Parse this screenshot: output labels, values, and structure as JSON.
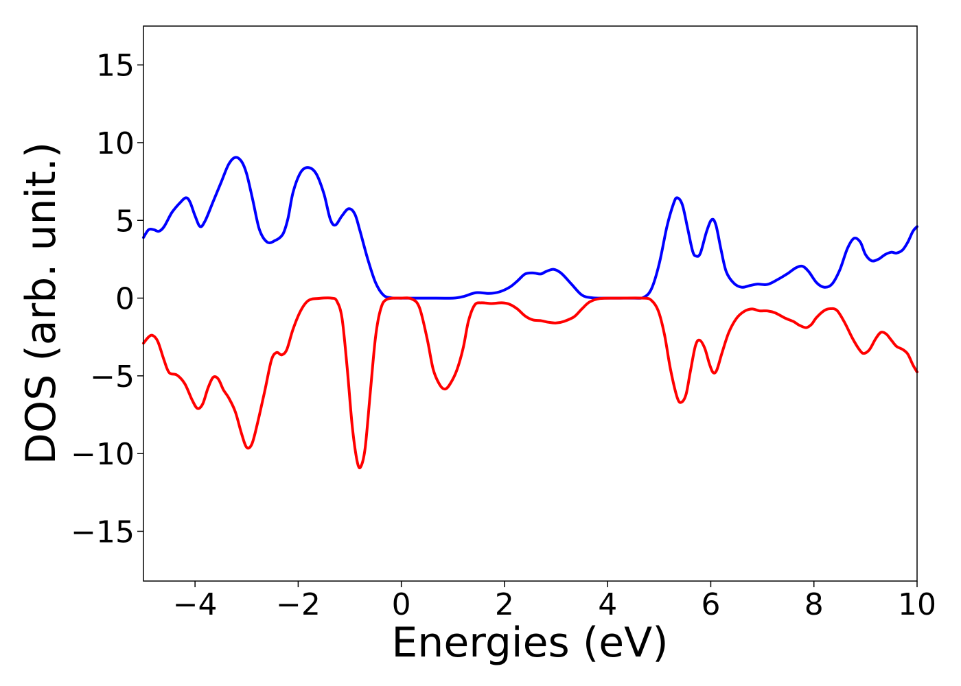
{
  "chart_data": {
    "type": "line",
    "title": "",
    "xlabel": "Energies (eV)",
    "ylabel": "DOS (arb. unit.)",
    "xlim": [
      -5,
      10
    ],
    "ylim": [
      -18.2,
      17.5
    ],
    "xticks": [
      -4,
      -2,
      0,
      2,
      4,
      6,
      8,
      10
    ],
    "xtick_labels": [
      "−4",
      "−2",
      "0",
      "2",
      "4",
      "6",
      "8",
      "10"
    ],
    "yticks": [
      15,
      10,
      5,
      0,
      -5,
      -10,
      -15
    ],
    "ytick_labels": [
      "15",
      "10",
      "5",
      "0",
      "−5",
      "−10",
      "−15"
    ],
    "grid": false,
    "legend": "none",
    "series": [
      {
        "color": "#0000ff",
        "points": [
          [
            -5.0,
            3.9
          ],
          [
            -4.9,
            4.4
          ],
          [
            -4.8,
            4.4
          ],
          [
            -4.7,
            4.3
          ],
          [
            -4.6,
            4.6
          ],
          [
            -4.45,
            5.5
          ],
          [
            -4.3,
            6.1
          ],
          [
            -4.18,
            6.45
          ],
          [
            -4.1,
            6.2
          ],
          [
            -4.0,
            5.3
          ],
          [
            -3.9,
            4.6
          ],
          [
            -3.8,
            5.0
          ],
          [
            -3.65,
            6.2
          ],
          [
            -3.5,
            7.4
          ],
          [
            -3.35,
            8.6
          ],
          [
            -3.22,
            9.05
          ],
          [
            -3.1,
            8.8
          ],
          [
            -3.0,
            8.0
          ],
          [
            -2.88,
            6.3
          ],
          [
            -2.75,
            4.4
          ],
          [
            -2.6,
            3.6
          ],
          [
            -2.45,
            3.7
          ],
          [
            -2.3,
            4.1
          ],
          [
            -2.2,
            5.1
          ],
          [
            -2.1,
            6.8
          ],
          [
            -1.95,
            8.1
          ],
          [
            -1.8,
            8.4
          ],
          [
            -1.65,
            8.0
          ],
          [
            -1.5,
            6.7
          ],
          [
            -1.38,
            5.1
          ],
          [
            -1.28,
            4.7
          ],
          [
            -1.15,
            5.3
          ],
          [
            -1.02,
            5.75
          ],
          [
            -0.9,
            5.4
          ],
          [
            -0.8,
            4.3
          ],
          [
            -0.65,
            2.5
          ],
          [
            -0.5,
            1.0
          ],
          [
            -0.35,
            0.2
          ],
          [
            -0.2,
            0.02
          ],
          [
            0.0,
            0.0
          ],
          [
            0.5,
            0.0
          ],
          [
            1.0,
            0.0
          ],
          [
            1.2,
            0.1
          ],
          [
            1.45,
            0.35
          ],
          [
            1.7,
            0.3
          ],
          [
            1.9,
            0.4
          ],
          [
            2.1,
            0.7
          ],
          [
            2.25,
            1.1
          ],
          [
            2.4,
            1.55
          ],
          [
            2.55,
            1.62
          ],
          [
            2.7,
            1.55
          ],
          [
            2.8,
            1.7
          ],
          [
            2.95,
            1.85
          ],
          [
            3.1,
            1.6
          ],
          [
            3.3,
            0.9
          ],
          [
            3.5,
            0.2
          ],
          [
            3.7,
            0.02
          ],
          [
            4.0,
            0.0
          ],
          [
            4.5,
            0.0
          ],
          [
            4.7,
            0.05
          ],
          [
            4.85,
            0.6
          ],
          [
            5.0,
            2.2
          ],
          [
            5.15,
            4.6
          ],
          [
            5.28,
            6.1
          ],
          [
            5.35,
            6.45
          ],
          [
            5.45,
            6.0
          ],
          [
            5.55,
            4.5
          ],
          [
            5.65,
            3.0
          ],
          [
            5.72,
            2.7
          ],
          [
            5.8,
            2.9
          ],
          [
            5.92,
            4.3
          ],
          [
            6.02,
            5.05
          ],
          [
            6.1,
            4.7
          ],
          [
            6.2,
            3.1
          ],
          [
            6.3,
            1.7
          ],
          [
            6.45,
            0.95
          ],
          [
            6.6,
            0.7
          ],
          [
            6.75,
            0.8
          ],
          [
            6.9,
            0.9
          ],
          [
            7.1,
            0.88
          ],
          [
            7.3,
            1.2
          ],
          [
            7.5,
            1.6
          ],
          [
            7.65,
            1.95
          ],
          [
            7.78,
            2.05
          ],
          [
            7.9,
            1.7
          ],
          [
            8.05,
            1.0
          ],
          [
            8.2,
            0.7
          ],
          [
            8.35,
            0.9
          ],
          [
            8.5,
            1.8
          ],
          [
            8.65,
            3.2
          ],
          [
            8.78,
            3.85
          ],
          [
            8.9,
            3.6
          ],
          [
            9.0,
            2.8
          ],
          [
            9.12,
            2.4
          ],
          [
            9.25,
            2.5
          ],
          [
            9.38,
            2.8
          ],
          [
            9.5,
            2.95
          ],
          [
            9.6,
            2.9
          ],
          [
            9.72,
            3.1
          ],
          [
            9.82,
            3.6
          ],
          [
            9.92,
            4.3
          ],
          [
            10.0,
            4.6
          ]
        ]
      },
      {
        "color": "#ff0000",
        "points": [
          [
            -5.0,
            -2.9
          ],
          [
            -4.9,
            -2.5
          ],
          [
            -4.82,
            -2.4
          ],
          [
            -4.72,
            -2.8
          ],
          [
            -4.6,
            -4.0
          ],
          [
            -4.5,
            -4.8
          ],
          [
            -4.35,
            -4.95
          ],
          [
            -4.2,
            -5.5
          ],
          [
            -4.05,
            -6.6
          ],
          [
            -3.95,
            -7.1
          ],
          [
            -3.85,
            -6.8
          ],
          [
            -3.75,
            -5.8
          ],
          [
            -3.65,
            -5.1
          ],
          [
            -3.55,
            -5.2
          ],
          [
            -3.45,
            -5.9
          ],
          [
            -3.35,
            -6.4
          ],
          [
            -3.22,
            -7.3
          ],
          [
            -3.1,
            -8.7
          ],
          [
            -3.0,
            -9.6
          ],
          [
            -2.9,
            -9.4
          ],
          [
            -2.8,
            -8.2
          ],
          [
            -2.65,
            -6.0
          ],
          [
            -2.52,
            -4.0
          ],
          [
            -2.42,
            -3.5
          ],
          [
            -2.32,
            -3.65
          ],
          [
            -2.22,
            -3.3
          ],
          [
            -2.1,
            -2.0
          ],
          [
            -1.95,
            -0.8
          ],
          [
            -1.8,
            -0.15
          ],
          [
            -1.6,
            -0.02
          ],
          [
            -1.35,
            0.0
          ],
          [
            -1.25,
            -0.2
          ],
          [
            -1.15,
            -1.3
          ],
          [
            -1.05,
            -4.5
          ],
          [
            -0.95,
            -8.3
          ],
          [
            -0.85,
            -10.6
          ],
          [
            -0.78,
            -10.8
          ],
          [
            -0.7,
            -9.6
          ],
          [
            -0.6,
            -6.0
          ],
          [
            -0.5,
            -2.5
          ],
          [
            -0.4,
            -0.7
          ],
          [
            -0.28,
            -0.08
          ],
          [
            0.0,
            0.0
          ],
          [
            0.2,
            -0.05
          ],
          [
            0.35,
            -0.6
          ],
          [
            0.5,
            -2.6
          ],
          [
            0.62,
            -4.6
          ],
          [
            0.75,
            -5.6
          ],
          [
            0.85,
            -5.85
          ],
          [
            0.95,
            -5.5
          ],
          [
            1.08,
            -4.6
          ],
          [
            1.2,
            -3.2
          ],
          [
            1.3,
            -1.5
          ],
          [
            1.42,
            -0.45
          ],
          [
            1.55,
            -0.3
          ],
          [
            1.75,
            -0.35
          ],
          [
            1.95,
            -0.3
          ],
          [
            2.1,
            -0.4
          ],
          [
            2.25,
            -0.7
          ],
          [
            2.4,
            -1.15
          ],
          [
            2.55,
            -1.4
          ],
          [
            2.7,
            -1.45
          ],
          [
            2.85,
            -1.55
          ],
          [
            3.0,
            -1.6
          ],
          [
            3.15,
            -1.5
          ],
          [
            3.35,
            -1.2
          ],
          [
            3.5,
            -0.7
          ],
          [
            3.65,
            -0.25
          ],
          [
            3.85,
            -0.03
          ],
          [
            4.2,
            0.0
          ],
          [
            4.7,
            0.0
          ],
          [
            4.85,
            -0.15
          ],
          [
            4.98,
            -0.8
          ],
          [
            5.1,
            -2.3
          ],
          [
            5.22,
            -4.6
          ],
          [
            5.35,
            -6.4
          ],
          [
            5.43,
            -6.7
          ],
          [
            5.52,
            -6.2
          ],
          [
            5.6,
            -4.8
          ],
          [
            5.7,
            -3.1
          ],
          [
            5.78,
            -2.7
          ],
          [
            5.88,
            -3.2
          ],
          [
            5.98,
            -4.3
          ],
          [
            6.05,
            -4.8
          ],
          [
            6.12,
            -4.6
          ],
          [
            6.22,
            -3.5
          ],
          [
            6.35,
            -2.2
          ],
          [
            6.5,
            -1.3
          ],
          [
            6.65,
            -0.85
          ],
          [
            6.8,
            -0.7
          ],
          [
            6.95,
            -0.82
          ],
          [
            7.1,
            -0.82
          ],
          [
            7.25,
            -0.95
          ],
          [
            7.45,
            -1.3
          ],
          [
            7.6,
            -1.5
          ],
          [
            7.72,
            -1.75
          ],
          [
            7.85,
            -1.9
          ],
          [
            7.95,
            -1.7
          ],
          [
            8.05,
            -1.25
          ],
          [
            8.2,
            -0.8
          ],
          [
            8.32,
            -0.68
          ],
          [
            8.45,
            -0.8
          ],
          [
            8.6,
            -1.6
          ],
          [
            8.75,
            -2.6
          ],
          [
            8.9,
            -3.4
          ],
          [
            8.98,
            -3.55
          ],
          [
            9.08,
            -3.3
          ],
          [
            9.2,
            -2.6
          ],
          [
            9.3,
            -2.2
          ],
          [
            9.4,
            -2.3
          ],
          [
            9.5,
            -2.7
          ],
          [
            9.6,
            -3.1
          ],
          [
            9.72,
            -3.3
          ],
          [
            9.82,
            -3.6
          ],
          [
            9.92,
            -4.3
          ],
          [
            10.0,
            -4.75
          ]
        ]
      }
    ]
  }
}
